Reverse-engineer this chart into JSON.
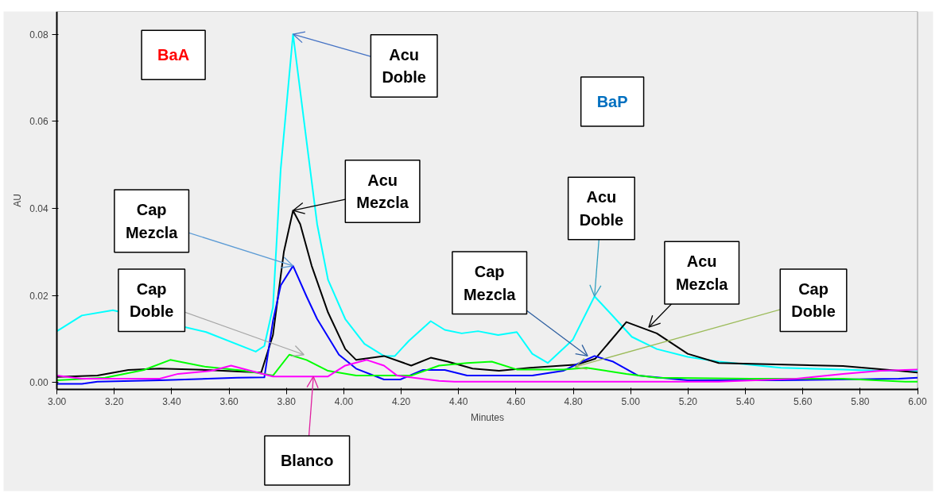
{
  "chart_data": {
    "type": "line",
    "xlabel": "Minutes",
    "ylabel": "AU",
    "xlim": [
      3.0,
      6.0
    ],
    "ylim": [
      -0.0015,
      0.0852
    ],
    "xticks": [
      {
        "value": 3.0,
        "label": "3.00"
      },
      {
        "value": 3.2,
        "label": "3.20"
      },
      {
        "value": 3.4,
        "label": "3.40"
      },
      {
        "value": 3.6,
        "label": "3.60"
      },
      {
        "value": 3.8,
        "label": "3.80"
      },
      {
        "value": 4.0,
        "label": "4.00"
      },
      {
        "value": 4.2,
        "label": "4.20"
      },
      {
        "value": 4.4,
        "label": "4.40"
      },
      {
        "value": 4.6,
        "label": "4.60"
      },
      {
        "value": 4.8,
        "label": "4.80"
      },
      {
        "value": 5.0,
        "label": "5.00"
      },
      {
        "value": 5.2,
        "label": "5.20"
      },
      {
        "value": 5.4,
        "label": "5.40"
      },
      {
        "value": 5.6,
        "label": "5.60"
      },
      {
        "value": 5.8,
        "label": "5.80"
      },
      {
        "value": 6.0,
        "label": "6.00"
      }
    ],
    "yticks": [
      {
        "value": 0,
        "label": "0.00"
      },
      {
        "value": 0.02,
        "label": "0.02"
      },
      {
        "value": 0.04,
        "label": "0.04"
      },
      {
        "value": 0.06,
        "label": "0.06"
      },
      {
        "value": 0.08,
        "label": "0.08"
      }
    ],
    "grid": false,
    "series": [
      {
        "color": "#00ffff",
        "x": [
          3.0,
          3.087,
          3.195,
          3.52,
          3.693,
          3.723,
          3.753,
          3.78,
          3.823,
          3.87,
          3.907,
          3.945,
          4.005,
          4.072,
          4.14,
          4.178,
          4.227,
          4.303,
          4.352,
          4.411,
          4.468,
          4.538,
          4.603,
          4.657,
          4.711,
          4.798,
          4.874,
          4.939,
          5.004,
          5.091,
          5.199,
          5.307,
          5.524,
          5.74,
          5.87,
          6.0
        ],
        "values": [
          0.0118,
          0.0154,
          0.0166,
          0.0116,
          0.0071,
          0.0084,
          0.0173,
          0.049,
          0.08,
          0.0555,
          0.0364,
          0.0236,
          0.0146,
          0.0089,
          0.0061,
          0.0061,
          0.0096,
          0.0141,
          0.0121,
          0.0113,
          0.0118,
          0.0109,
          0.0116,
          0.0066,
          0.0045,
          0.0098,
          0.0198,
          0.0152,
          0.0105,
          0.0077,
          0.0059,
          0.0048,
          0.0034,
          0.003,
          0.0027,
          0.0027
        ]
      },
      {
        "color": "#000000",
        "x": [
          3.0,
          3.141,
          3.249,
          3.358,
          3.52,
          3.712,
          3.753,
          3.791,
          3.823,
          3.848,
          3.888,
          3.945,
          4.005,
          4.043,
          4.14,
          4.235,
          4.303,
          4.363,
          4.449,
          4.541,
          4.649,
          4.812,
          4.877,
          4.985,
          5.091,
          5.199,
          5.307,
          5.74,
          5.935,
          6.0
        ],
        "values": [
          0.0013,
          0.0016,
          0.0029,
          0.0032,
          0.0029,
          0.0023,
          0.0109,
          0.03,
          0.0395,
          0.0364,
          0.0268,
          0.0161,
          0.0077,
          0.0052,
          0.0061,
          0.0039,
          0.0057,
          0.0048,
          0.0032,
          0.0027,
          0.0034,
          0.0041,
          0.0055,
          0.0139,
          0.0113,
          0.0066,
          0.0045,
          0.0038,
          0.0027,
          0.0023
        ]
      },
      {
        "color": "#0000ff",
        "x": [
          3.0,
          3.087,
          3.141,
          3.358,
          3.628,
          3.723,
          3.753,
          3.78,
          3.823,
          3.87,
          3.907,
          3.983,
          4.043,
          4.14,
          4.197,
          4.276,
          4.352,
          4.43,
          4.657,
          4.765,
          4.83,
          4.874,
          4.939,
          5.026,
          5.199,
          5.524,
          5.935,
          6.0
        ],
        "values": [
          -0.0003,
          -0.0003,
          0.0002,
          0.0005,
          0.0011,
          0.0012,
          0.0141,
          0.0223,
          0.0268,
          0.0198,
          0.0146,
          0.0064,
          0.0032,
          0.0007,
          0.0007,
          0.0029,
          0.0029,
          0.0016,
          0.0016,
          0.0027,
          0.0048,
          0.0061,
          0.0048,
          0.0016,
          0.0005,
          0.0005,
          0.0009,
          0.0011
        ]
      },
      {
        "color": "#00ff00",
        "x": [
          3.0,
          3.168,
          3.303,
          3.395,
          3.52,
          3.655,
          3.753,
          3.81,
          3.87,
          3.945,
          4.043,
          4.235,
          4.332,
          4.43,
          4.516,
          4.603,
          4.765,
          4.846,
          4.985,
          5.091,
          5.416,
          5.74,
          5.957,
          6.0
        ],
        "values": [
          0.0005,
          0.0011,
          0.0029,
          0.0052,
          0.0036,
          0.0027,
          0.0016,
          0.0064,
          0.0052,
          0.0027,
          0.0016,
          0.0016,
          0.0039,
          0.0045,
          0.0048,
          0.003,
          0.003,
          0.0034,
          0.002,
          0.0011,
          0.0009,
          0.0009,
          0.0002,
          0.0002
        ]
      },
      {
        "color": "#ff00ff",
        "x": [
          3.0,
          3.087,
          3.358,
          3.422,
          3.539,
          3.607,
          3.675,
          3.753,
          3.945,
          4.005,
          4.08,
          4.14,
          4.186,
          4.332,
          4.386,
          4.65,
          5.307,
          5.578,
          5.74,
          5.87,
          6.0
        ],
        "values": [
          0.0016,
          0.0009,
          0.0009,
          0.002,
          0.0027,
          0.0039,
          0.0027,
          0.0014,
          0.0014,
          0.0039,
          0.0052,
          0.0039,
          0.0016,
          0.0004,
          0.0002,
          0.0002,
          0.0002,
          0.0009,
          0.002,
          0.0027,
          0.003
        ]
      }
    ],
    "annotations": [
      "BaA",
      {
        "text": "Acu Doble",
        "x": 3.823,
        "y": 0.08
      },
      "BaP",
      {
        "text": "Acu Mezcla",
        "x": 3.823,
        "y": 0.0395
      },
      {
        "text": "Cap Mezcla",
        "x": 3.823,
        "y": 0.0268
      },
      {
        "text": "Acu Doble",
        "x": 4.874,
        "y": 0.0198
      },
      {
        "text": "Cap Doble",
        "x": 3.861,
        "y": 0.0064
      },
      {
        "text": "Acu Mezcla",
        "x": 5.063,
        "y": 0.0127
      },
      {
        "text": "Cap Mezcla",
        "x": 4.85,
        "y": 0.0061
      },
      {
        "text": "Cap Doble",
        "x": 4.806,
        "y": 0.0036
      },
      {
        "text": "Blanco",
        "x": 3.894,
        "y": 0.0014
      }
    ]
  }
}
